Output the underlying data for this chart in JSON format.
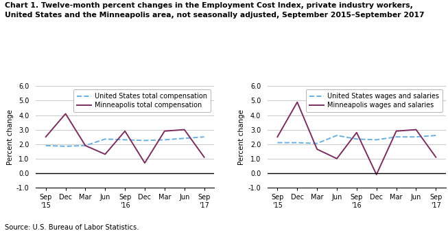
{
  "title_line1": "Chart 1. Twelve-month percent changes in the Employment Cost Index, private industry workers,",
  "title_line2": "United States and the Minneapolis area, not seasonally adjusted, September 2015–September 2017",
  "source": "Source: U.S. Bureau of Labor Statistics.",
  "ylabel": "Percent change",
  "x_labels": [
    "Sep\n'15",
    "Dec",
    "Mar",
    "Jun",
    "Sep\n'16",
    "Dec",
    "Mar",
    "Jun",
    "Sep\n'17"
  ],
  "ylim": [
    -1.0,
    6.0
  ],
  "yticks": [
    -1.0,
    0.0,
    1.0,
    2.0,
    3.0,
    4.0,
    5.0,
    6.0
  ],
  "left_chart": {
    "us_label": "United States total compensation",
    "mpls_label": "Minneapolis total compensation",
    "us_values": [
      1.9,
      1.85,
      1.9,
      2.35,
      2.3,
      2.25,
      2.3,
      2.4,
      2.5
    ],
    "mpls_values": [
      2.5,
      4.1,
      1.9,
      1.3,
      2.9,
      0.7,
      2.9,
      3.0,
      1.1
    ]
  },
  "right_chart": {
    "us_label": "United States wages and salaries",
    "mpls_label": "Minneapolis wages and salaries",
    "us_values": [
      2.1,
      2.1,
      2.05,
      2.6,
      2.35,
      2.3,
      2.5,
      2.5,
      2.6
    ],
    "mpls_values": [
      2.5,
      4.9,
      1.65,
      1.0,
      2.8,
      -0.1,
      2.9,
      3.0,
      1.1
    ]
  },
  "us_color": "#6ab0e0",
  "mpls_color": "#7b2d5e",
  "us_linestyle": "--",
  "mpls_linestyle": "-",
  "linewidth": 1.4,
  "title_fontsize": 7.8,
  "label_fontsize": 7.5,
  "tick_fontsize": 7.0,
  "legend_fontsize": 7.0,
  "source_fontsize": 7.2
}
